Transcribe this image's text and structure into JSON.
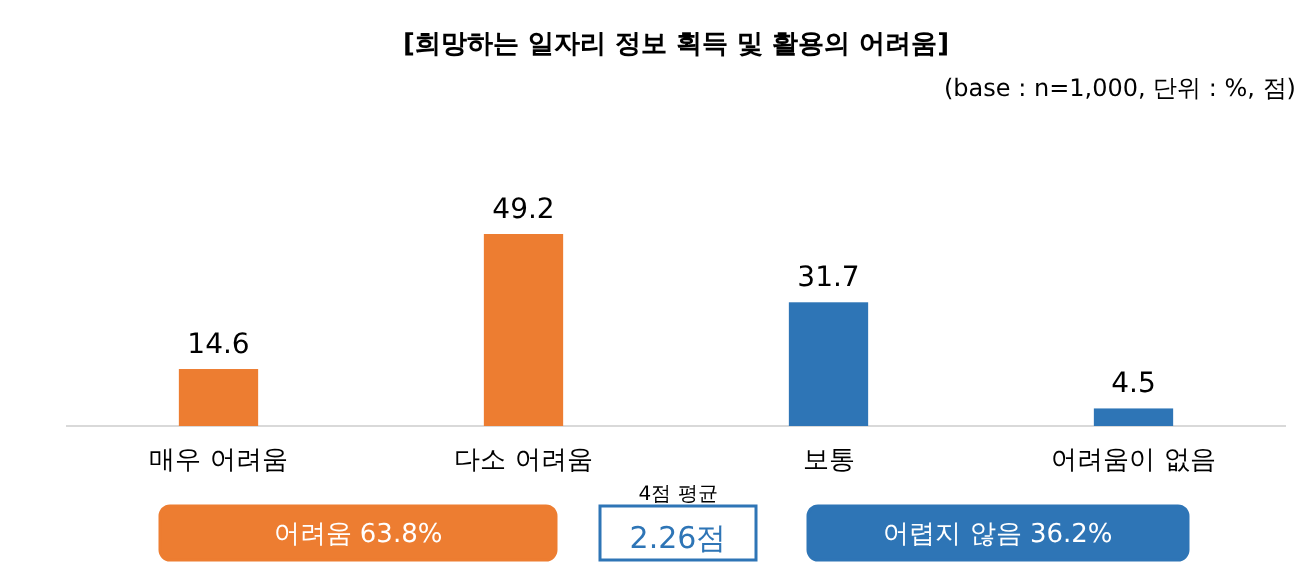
{
  "chart_data": {
    "type": "bar",
    "title": "[희망하는 일자리 정보 획득 및 활용의 어려움]",
    "subtitle": "(base : n=1,000, 단위 : %, 점)",
    "categories": [
      "매우 어려움",
      "다소 어려움",
      "보통",
      "어려움이 없음"
    ],
    "values": [
      14.6,
      49.2,
      31.7,
      4.5
    ],
    "colors": [
      "#ed7d31",
      "#ed7d31",
      "#2e75b6",
      "#2e75b6"
    ],
    "data_labels": true,
    "annotations": [
      "어려움 63.8%",
      "4점 평균\n2.26점",
      "어렵지 않음 36.2%"
    ]
  }
}
